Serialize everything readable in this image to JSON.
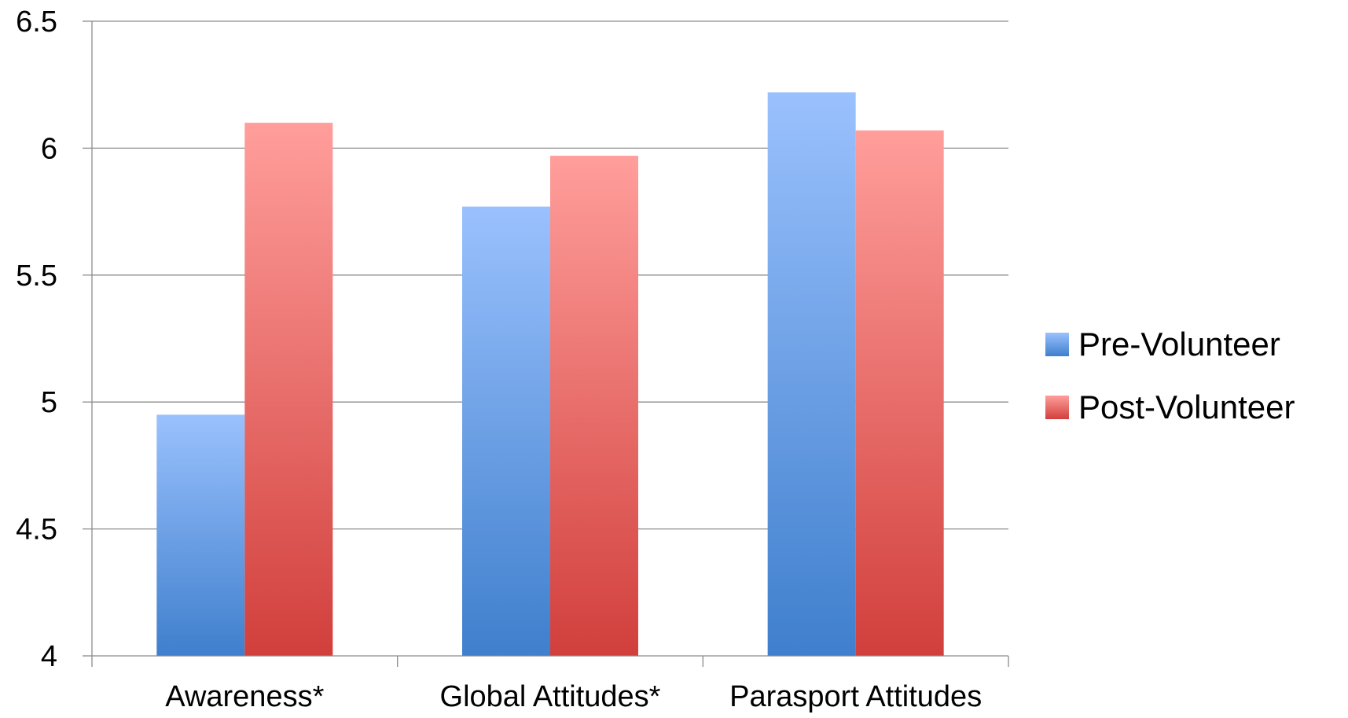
{
  "chart_data": {
    "type": "bar",
    "title": "",
    "xlabel": "",
    "ylabel": "",
    "categories": [
      "Awareness*",
      "Global Attitudes*",
      "Parasport Attitudes"
    ],
    "series": [
      {
        "name": "Pre-Volunteer",
        "values": [
          4.95,
          5.77,
          6.22
        ],
        "color_top": "#9ac1fd",
        "color_bottom": "#3f7fcd"
      },
      {
        "name": "Post-Volunteer",
        "values": [
          6.1,
          5.97,
          6.07
        ],
        "color_top": "#ff9e9b",
        "color_bottom": "#d13f3c"
      }
    ],
    "ylim": [
      4,
      6.5
    ],
    "yticks": [
      4,
      4.5,
      5,
      5.5,
      6,
      6.5
    ],
    "ytick_labels": [
      "4",
      "4.5",
      "5",
      "5.5",
      "6",
      "6.5"
    ],
    "grid": "horizontal",
    "legend_position": "right"
  }
}
